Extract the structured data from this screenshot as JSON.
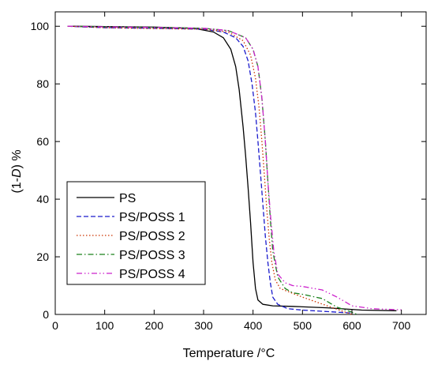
{
  "chart_data": {
    "type": "line",
    "title": "",
    "xlabel": "Temperature /°C",
    "ylabel": "(1-D) %",
    "ylabel_prefix": "(1-",
    "ylabel_italic": "D",
    "ylabel_suffix": ") %",
    "xlim": [
      0,
      750
    ],
    "ylim": [
      0,
      105
    ],
    "xticks": [
      0,
      100,
      200,
      300,
      400,
      500,
      600,
      700
    ],
    "yticks": [
      0,
      20,
      40,
      60,
      80,
      100
    ],
    "grid": false,
    "legend_position": "bottom-left",
    "series": [
      {
        "name": "PS",
        "color": "#000000",
        "dash": "solid",
        "x": [
          25,
          100,
          200,
          280,
          320,
          340,
          355,
          365,
          372,
          380,
          385,
          390,
          395,
          400,
          405,
          410,
          420,
          440,
          480,
          550,
          620,
          690
        ],
        "y": [
          100,
          99.9,
          99.7,
          99.3,
          98,
          96,
          92,
          86,
          78,
          65,
          55,
          44,
          32,
          18,
          9,
          5,
          3.5,
          3,
          2.8,
          2.3,
          1.5,
          1.3
        ]
      },
      {
        "name": "PS/POSS 1",
        "color": "#1a1acc",
        "dash": "6,3",
        "x": [
          25,
          100,
          200,
          300,
          340,
          365,
          380,
          390,
          398,
          405,
          410,
          415,
          420,
          425,
          430,
          435,
          440,
          450,
          470,
          500,
          550,
          600
        ],
        "y": [
          100,
          99.5,
          99.3,
          99,
          98,
          96,
          93,
          88,
          80,
          70,
          60,
          49,
          38,
          27,
          18,
          11,
          6,
          3.5,
          2,
          1.5,
          1,
          0.5
        ]
      },
      {
        "name": "PS/POSS 2",
        "color": "#cc3300",
        "dash": "1.5,2.5",
        "x": [
          25,
          100,
          200,
          300,
          350,
          380,
          395,
          405,
          412,
          418,
          423,
          428,
          433,
          438,
          445,
          455,
          470,
          500,
          550,
          600
        ],
        "y": [
          100,
          99.5,
          99.2,
          99,
          98,
          95,
          90,
          82,
          72,
          60,
          48,
          36,
          26,
          18,
          12,
          9,
          8,
          6,
          3,
          0
        ]
      },
      {
        "name": "PS/POSS 3",
        "color": "#1a801a",
        "dash": "7,3,1.5,3",
        "x": [
          25,
          100,
          200,
          300,
          350,
          385,
          400,
          410,
          418,
          425,
          430,
          435,
          440,
          450,
          465,
          480,
          500,
          540,
          570,
          600,
          610
        ],
        "y": [
          100,
          99.8,
          99.6,
          99.3,
          98.5,
          96,
          92,
          86,
          75,
          60,
          46,
          33,
          22,
          13,
          9,
          7.5,
          7,
          5.5,
          2.5,
          0.8,
          0
        ]
      },
      {
        "name": "PS/POSS 4",
        "color": "#cc22cc",
        "dash": "7,3,1.5,3,1.5,3",
        "x": [
          25,
          100,
          200,
          300,
          350,
          385,
          400,
          410,
          418,
          425,
          430,
          436,
          442,
          450,
          465,
          480,
          500,
          540,
          570,
          600,
          640,
          700
        ],
        "y": [
          100,
          99.8,
          99.6,
          99.3,
          98.5,
          96,
          92,
          86,
          75,
          60,
          46,
          33,
          22,
          14,
          11,
          10,
          9.7,
          8.5,
          6,
          3,
          2,
          1.6
        ]
      }
    ]
  }
}
